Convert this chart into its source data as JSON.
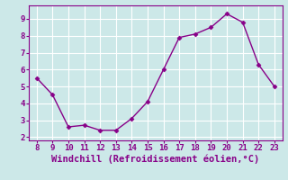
{
  "x": [
    8,
    9,
    10,
    11,
    12,
    13,
    14,
    15,
    16,
    17,
    18,
    19,
    20,
    21,
    22,
    23
  ],
  "y": [
    5.5,
    4.5,
    2.6,
    2.7,
    2.4,
    2.4,
    3.1,
    4.1,
    6.0,
    7.9,
    8.1,
    8.5,
    9.3,
    8.8,
    6.3,
    5.0
  ],
  "line_color": "#880088",
  "marker": "D",
  "marker_size": 2.5,
  "xlabel": "Windchill (Refroidissement éolien,°C)",
  "xlim": [
    7.5,
    23.5
  ],
  "ylim": [
    1.8,
    9.8
  ],
  "xticks": [
    8,
    9,
    10,
    11,
    12,
    13,
    14,
    15,
    16,
    17,
    18,
    19,
    20,
    21,
    22,
    23
  ],
  "yticks": [
    2,
    3,
    4,
    5,
    6,
    7,
    8,
    9
  ],
  "bg_color": "#cce8e8",
  "grid_color": "#bbdddd",
  "tick_label_fontsize": 6.5,
  "xlabel_fontsize": 7.5,
  "linewidth": 1.0
}
